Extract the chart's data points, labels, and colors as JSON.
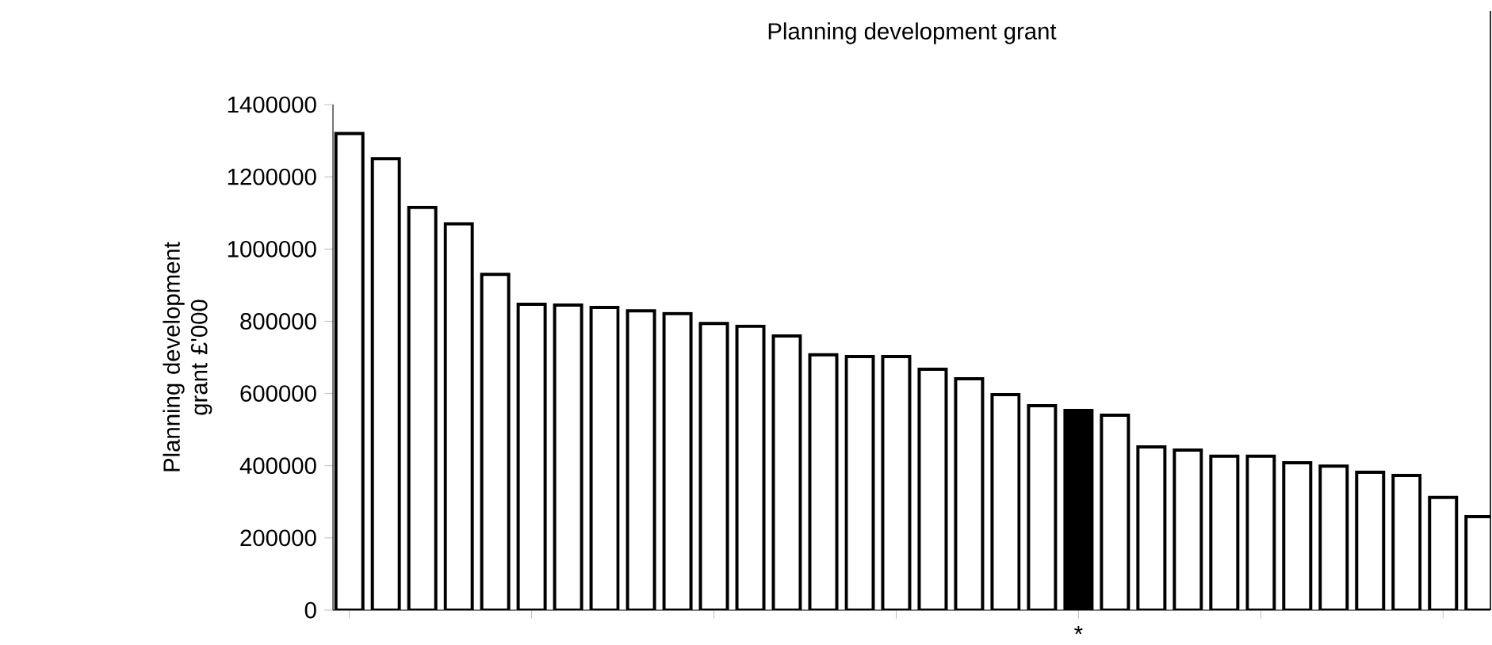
{
  "chart_data": {
    "type": "bar",
    "title": "Planning development grant",
    "ylabel": "Planning development grant £'000",
    "categories": [
      null,
      null,
      null,
      null,
      null,
      null,
      null,
      null,
      null,
      null,
      null,
      null,
      null,
      null,
      null,
      null,
      null,
      null,
      null,
      null,
      "*",
      null,
      null,
      null,
      null,
      null,
      null,
      null,
      null,
      null,
      null,
      null
    ],
    "values": [
      1320000,
      1250000,
      1115000,
      1070000,
      930000,
      847000,
      845000,
      838000,
      829000,
      821000,
      794000,
      786000,
      759000,
      707000,
      702000,
      702000,
      667000,
      641000,
      597000,
      566000,
      553000,
      540000,
      452000,
      443000,
      426000,
      426000,
      408000,
      399000,
      382000,
      373000,
      312000,
      259000
    ],
    "colors": [
      "#ffffff",
      "#ffffff",
      "#ffffff",
      "#ffffff",
      "#ffffff",
      "#ffffff",
      "#ffffff",
      "#ffffff",
      "#ffffff",
      "#ffffff",
      "#ffffff",
      "#ffffff",
      "#ffffff",
      "#ffffff",
      "#ffffff",
      "#ffffff",
      "#ffffff",
      "#ffffff",
      "#ffffff",
      "#ffffff",
      "#000000",
      "#ffffff",
      "#ffffff",
      "#ffffff",
      "#ffffff",
      "#ffffff",
      "#ffffff",
      "#ffffff",
      "#ffffff",
      "#ffffff",
      "#ffffff",
      "#ffffff"
    ],
    "ylim": [
      0,
      1400000
    ],
    "yticks": [
      0,
      200000,
      400000,
      600000,
      800000,
      1000000,
      1200000,
      1400000
    ],
    "grid": false
  }
}
